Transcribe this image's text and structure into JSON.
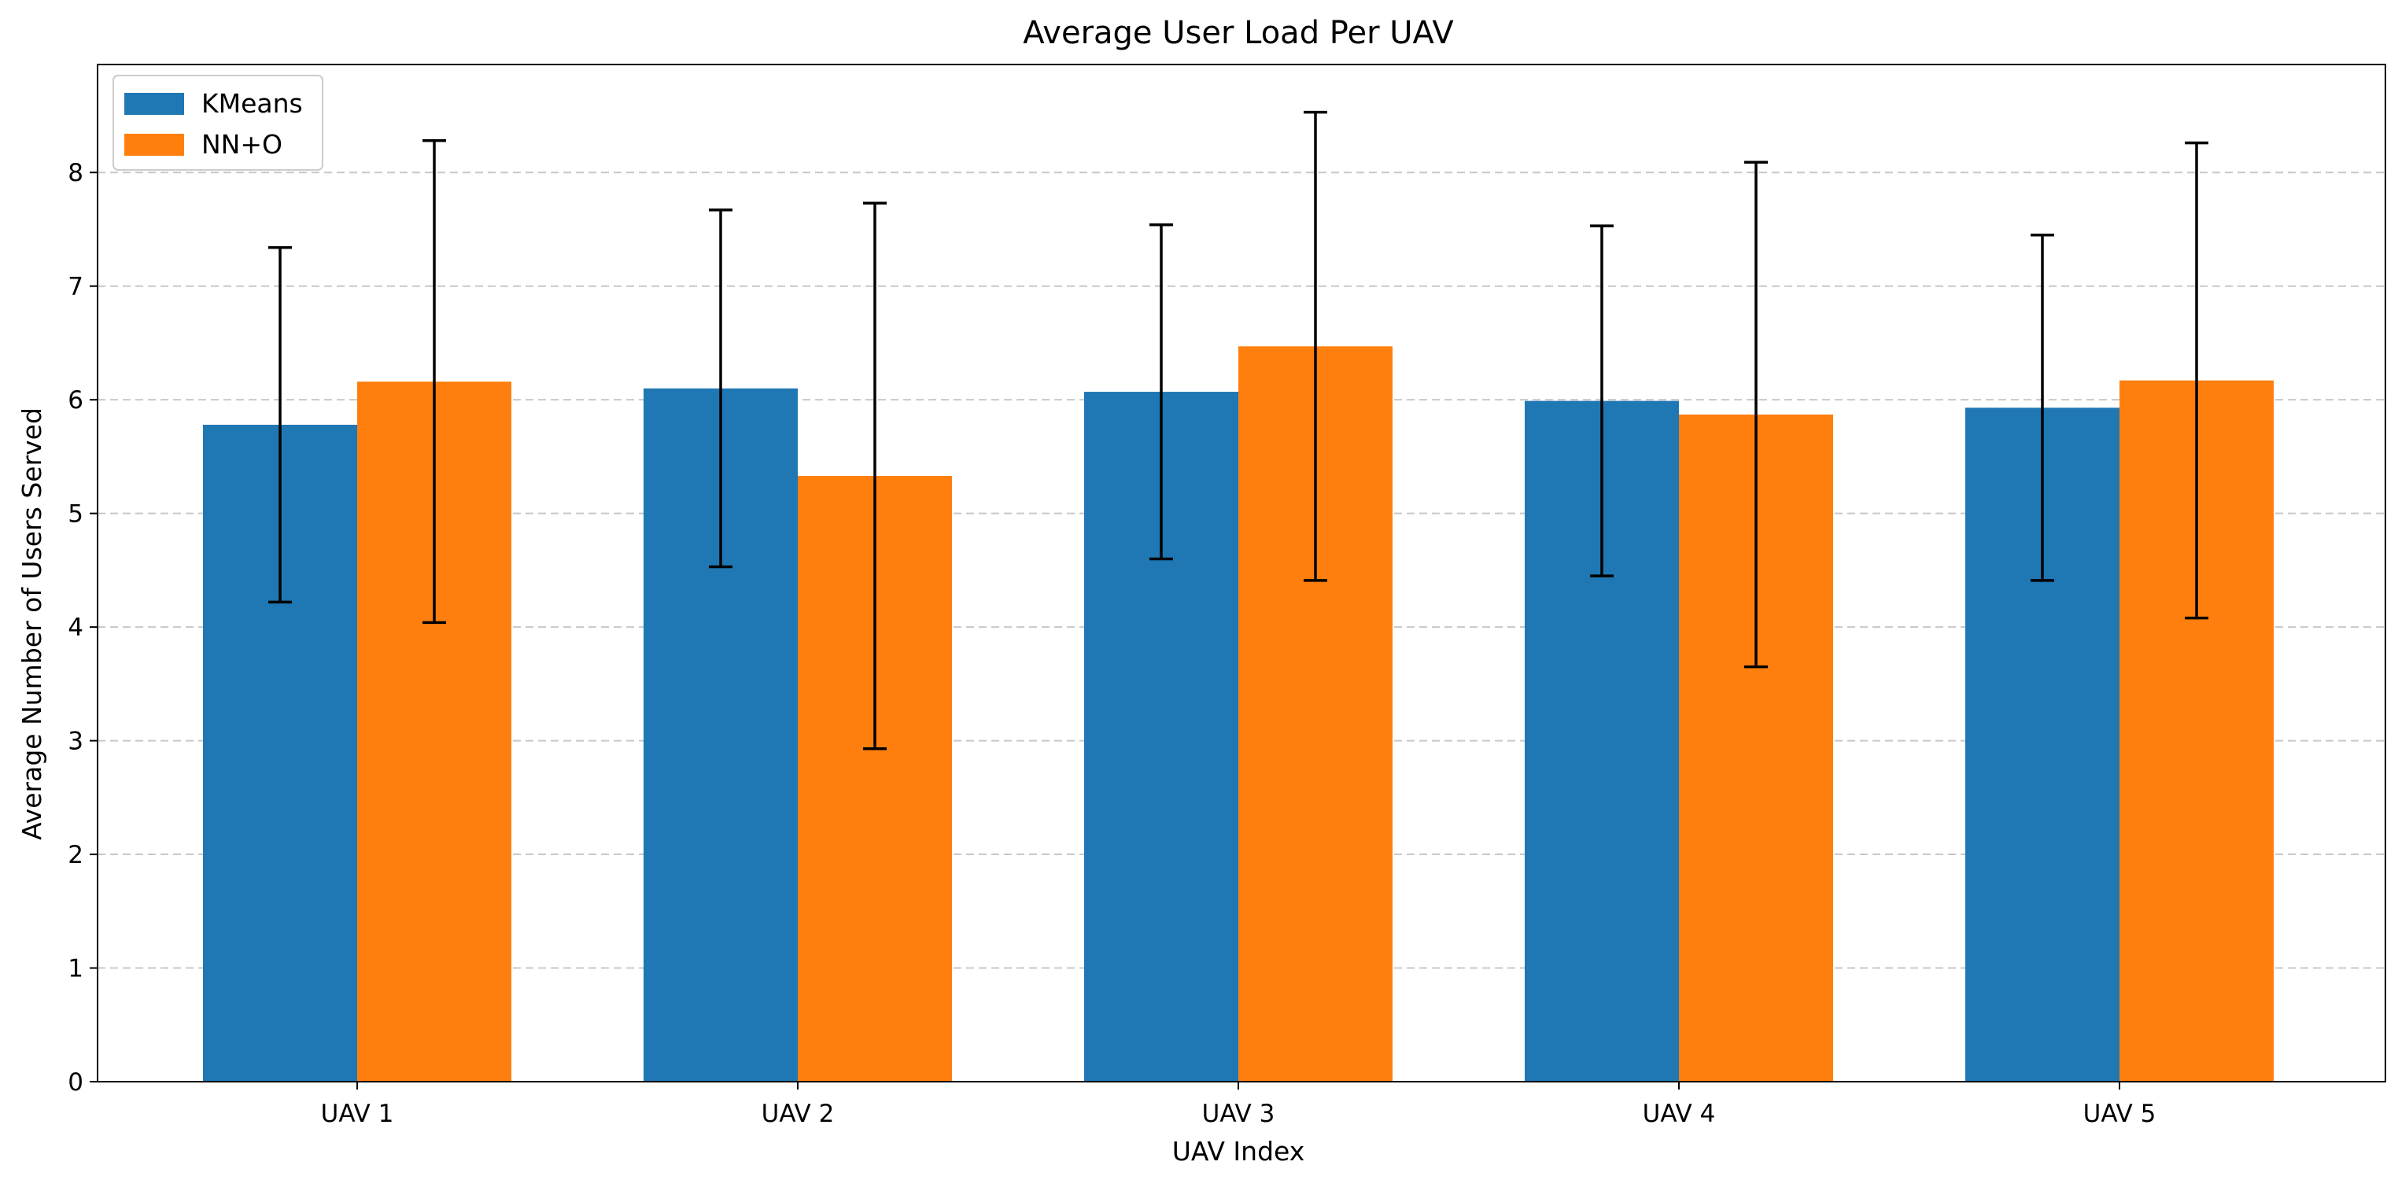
{
  "chart_data": {
    "type": "bar",
    "title": "Average User Load Per UAV",
    "xlabel": "UAV Index",
    "ylabel": "Average Number of Users Served",
    "categories": [
      "UAV 1",
      "UAV 2",
      "UAV 3",
      "UAV 4",
      "UAV 5"
    ],
    "ylim": [
      0,
      8.95
    ],
    "yticks": [
      0,
      1,
      2,
      3,
      4,
      5,
      6,
      7,
      8
    ],
    "grid": "y-dashed",
    "legend_position": "top-left",
    "series": [
      {
        "name": "KMeans",
        "color": "#1f77b4",
        "values": [
          5.78,
          6.1,
          6.07,
          5.99,
          5.93
        ],
        "errors": [
          1.56,
          1.57,
          1.47,
          1.54,
          1.52
        ]
      },
      {
        "name": "NN+O",
        "color": "#ff7f0e",
        "values": [
          6.16,
          5.33,
          6.47,
          5.87,
          6.17
        ],
        "errors": [
          2.12,
          2.4,
          2.06,
          2.22,
          2.09
        ]
      }
    ]
  }
}
